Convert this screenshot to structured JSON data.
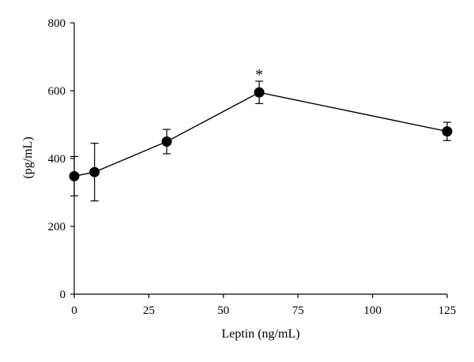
{
  "chart_data": {
    "type": "line",
    "title": "",
    "xlabel": "Leptin (ng/mL)",
    "ylabel": "(pg/mL)",
    "xlim": [
      0,
      125
    ],
    "ylim": [
      0,
      800
    ],
    "xticks": [
      0,
      25,
      50,
      75,
      100,
      125
    ],
    "yticks": [
      0,
      200,
      400,
      600,
      800
    ],
    "grid": false,
    "series": [
      {
        "x": [
          0,
          6.8,
          31,
          62,
          125
        ],
        "y": [
          348,
          360,
          450,
          595,
          480
        ],
        "error": [
          58,
          85,
          36,
          33,
          27
        ]
      }
    ],
    "annotations": [
      {
        "text": "*",
        "x": 62
      }
    ],
    "colors": {
      "line": "#000000",
      "marker": "#000000"
    }
  }
}
